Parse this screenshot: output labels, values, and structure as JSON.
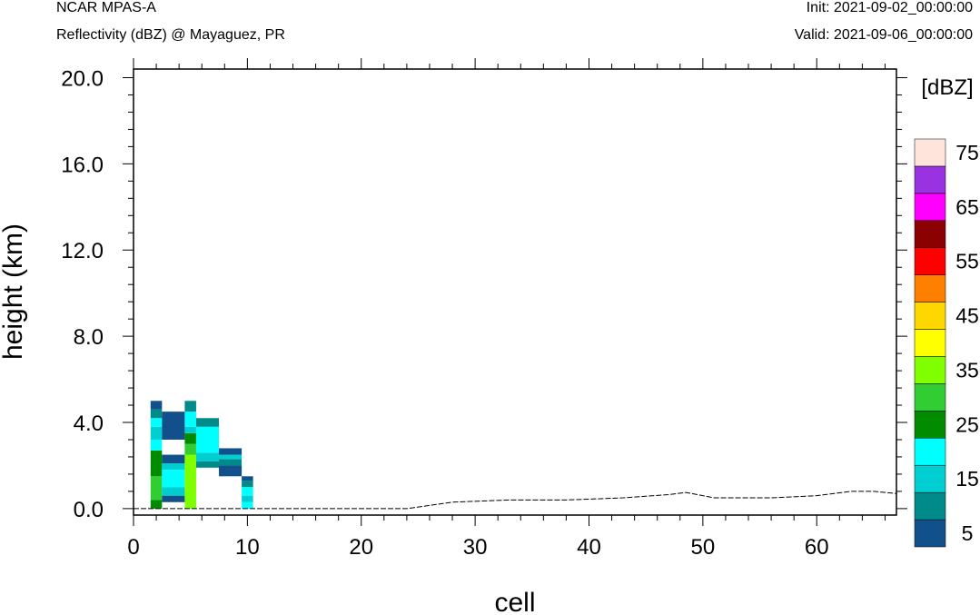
{
  "header": {
    "model": "NCAR MPAS-A",
    "subtitle": "Reflectivity (dBZ) @ Mayaguez, PR",
    "init": "Init: 2021-09-02_00:00:00",
    "valid": "Valid: 2021-09-06_00:00:00"
  },
  "chart_data": {
    "type": "heatmap",
    "title": "Reflectivity (dBZ) @ Mayaguez, PR",
    "xlabel": "cell",
    "ylabel": "height (km)",
    "xlim": [
      0,
      67
    ],
    "ylim": [
      -0.3,
      20.4
    ],
    "xticks": [
      0,
      10,
      20,
      30,
      40,
      50,
      60
    ],
    "yticks": [
      0.0,
      4.0,
      8.0,
      12.0,
      16.0,
      20.0
    ],
    "ytick_labels": [
      "0.0",
      "4.0",
      "8.0",
      "12.0",
      "16.0",
      "20.0"
    ],
    "colorbar": {
      "label": "[dBZ]",
      "levels": [
        5,
        10,
        15,
        20,
        25,
        30,
        35,
        40,
        45,
        50,
        55,
        60,
        65,
        70,
        75
      ],
      "tick_labels": [
        "5",
        "15",
        "25",
        "35",
        "45",
        "55",
        "65",
        "75"
      ],
      "colors": [
        "#12508c",
        "#008b8b",
        "#00ced1",
        "#00ffff",
        "#008b00",
        "#32cd32",
        "#7fff00",
        "#ffff00",
        "#ffd700",
        "#ff7f00",
        "#ff0000",
        "#8b0000",
        "#ff00ff",
        "#9932e0",
        "#ffe4dc"
      ]
    },
    "cells": [
      {
        "x0": 1.5,
        "x1": 2.5,
        "y0": 0.0,
        "y1": 0.4,
        "dbz": 25
      },
      {
        "x0": 1.5,
        "x1": 2.5,
        "y0": 0.4,
        "y1": 1.5,
        "dbz": 30
      },
      {
        "x0": 1.5,
        "x1": 2.5,
        "y0": 1.5,
        "y1": 2.7,
        "dbz": 25
      },
      {
        "x0": 1.5,
        "x1": 2.5,
        "y0": 2.7,
        "y1": 3.2,
        "dbz": 20
      },
      {
        "x0": 1.5,
        "x1": 2.5,
        "y0": 3.2,
        "y1": 3.8,
        "dbz": 15
      },
      {
        "x0": 1.5,
        "x1": 2.5,
        "y0": 3.8,
        "y1": 4.2,
        "dbz": 20
      },
      {
        "x0": 1.5,
        "x1": 2.5,
        "y0": 4.2,
        "y1": 4.6,
        "dbz": 10
      },
      {
        "x0": 1.5,
        "x1": 2.5,
        "y0": 4.6,
        "y1": 5.0,
        "dbz": 5
      },
      {
        "x0": 2.5,
        "x1": 4.5,
        "y0": 0.3,
        "y1": 0.6,
        "dbz": 5
      },
      {
        "x0": 2.5,
        "x1": 4.5,
        "y0": 0.6,
        "y1": 1.0,
        "dbz": 15
      },
      {
        "x0": 2.5,
        "x1": 4.5,
        "y0": 1.0,
        "y1": 1.8,
        "dbz": 20
      },
      {
        "x0": 2.5,
        "x1": 4.5,
        "y0": 1.8,
        "y1": 2.1,
        "dbz": 15
      },
      {
        "x0": 2.5,
        "x1": 4.5,
        "y0": 2.1,
        "y1": 2.5,
        "dbz": 5
      },
      {
        "x0": 2.5,
        "x1": 4.5,
        "y0": 3.2,
        "y1": 4.5,
        "dbz": 5
      },
      {
        "x0": 4.5,
        "x1": 5.5,
        "y0": 0.0,
        "y1": 2.5,
        "dbz": 35
      },
      {
        "x0": 4.5,
        "x1": 5.5,
        "y0": 2.5,
        "y1": 3.0,
        "dbz": 30
      },
      {
        "x0": 4.5,
        "x1": 5.5,
        "y0": 3.0,
        "y1": 3.5,
        "dbz": 25
      },
      {
        "x0": 4.5,
        "x1": 5.5,
        "y0": 3.5,
        "y1": 3.8,
        "dbz": 15
      },
      {
        "x0": 4.5,
        "x1": 5.5,
        "y0": 3.8,
        "y1": 4.5,
        "dbz": 20
      },
      {
        "x0": 4.5,
        "x1": 5.5,
        "y0": 4.5,
        "y1": 5.0,
        "dbz": 10
      },
      {
        "x0": 5.5,
        "x1": 7.5,
        "y0": 1.9,
        "y1": 2.2,
        "dbz": 10
      },
      {
        "x0": 5.5,
        "x1": 7.5,
        "y0": 2.2,
        "y1": 2.6,
        "dbz": 15
      },
      {
        "x0": 5.5,
        "x1": 7.5,
        "y0": 2.6,
        "y1": 3.8,
        "dbz": 20
      },
      {
        "x0": 5.5,
        "x1": 7.5,
        "y0": 3.8,
        "y1": 4.2,
        "dbz": 10
      },
      {
        "x0": 7.5,
        "x1": 9.5,
        "y0": 1.5,
        "y1": 2.0,
        "dbz": 5
      },
      {
        "x0": 7.5,
        "x1": 9.5,
        "y0": 2.0,
        "y1": 2.3,
        "dbz": 10
      },
      {
        "x0": 7.5,
        "x1": 9.5,
        "y0": 2.3,
        "y1": 2.5,
        "dbz": 15
      },
      {
        "x0": 7.5,
        "x1": 9.5,
        "y0": 2.5,
        "y1": 2.8,
        "dbz": 5
      },
      {
        "x0": 9.5,
        "x1": 10.5,
        "y0": 0.0,
        "y1": 0.3,
        "dbz": 20
      },
      {
        "x0": 9.5,
        "x1": 10.5,
        "y0": 0.3,
        "y1": 0.6,
        "dbz": 15
      },
      {
        "x0": 9.5,
        "x1": 10.5,
        "y0": 0.6,
        "y1": 1.0,
        "dbz": 20
      },
      {
        "x0": 9.5,
        "x1": 10.5,
        "y0": 1.0,
        "y1": 1.3,
        "dbz": 10
      },
      {
        "x0": 9.5,
        "x1": 10.5,
        "y0": 1.3,
        "y1": 1.5,
        "dbz": 5
      }
    ],
    "terrain": {
      "x": [
        0,
        10,
        24,
        28,
        33,
        38,
        43,
        47,
        48.5,
        51,
        56,
        60,
        63,
        65,
        67
      ],
      "y": [
        0.0,
        0.0,
        0.0,
        0.3,
        0.4,
        0.4,
        0.5,
        0.65,
        0.75,
        0.5,
        0.5,
        0.6,
        0.8,
        0.8,
        0.7
      ]
    }
  }
}
